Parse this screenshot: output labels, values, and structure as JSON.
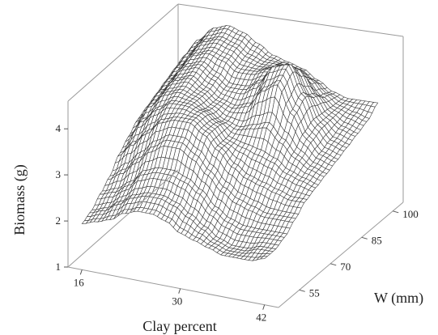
{
  "chart_data": {
    "type": "surface",
    "title": "",
    "xlabel": "Clay percent",
    "ylabel": "W (mm)",
    "zlabel": "Biomass (g)",
    "x_ticks": [
      "16",
      "30",
      "42"
    ],
    "x_tick_values": [
      16,
      30,
      42
    ],
    "y_ticks": [
      "55",
      "70",
      "85",
      "100"
    ],
    "y_tick_values": [
      55,
      70,
      85,
      100
    ],
    "z_ticks": [
      "1",
      "2",
      "3",
      "4"
    ],
    "z_tick_values": [
      1,
      2,
      3,
      4
    ],
    "xlim": [
      14,
      44
    ],
    "ylim": [
      45,
      105
    ],
    "zlim": [
      1,
      4.6
    ],
    "grid": false,
    "surface_grid_x": [
      16,
      18,
      20,
      22,
      24,
      26,
      28,
      30,
      32,
      34,
      36,
      38,
      40,
      42
    ],
    "surface_grid_y": [
      45,
      50,
      55,
      60,
      65,
      70,
      75,
      80,
      85,
      90,
      95,
      100
    ],
    "surface_z": [
      [
        2.0,
        2.1,
        2.2,
        2.4,
        2.5,
        2.5,
        2.4,
        2.2,
        2.1,
        2.0,
        1.9,
        1.9,
        1.9,
        2.0
      ],
      [
        2.1,
        2.2,
        2.4,
        2.6,
        2.7,
        2.7,
        2.6,
        2.4,
        2.2,
        2.0,
        1.9,
        1.9,
        2.0,
        2.0
      ],
      [
        2.3,
        2.4,
        2.6,
        2.9,
        3.0,
        3.0,
        2.9,
        2.7,
        2.4,
        2.2,
        2.1,
        2.1,
        2.1,
        2.1
      ],
      [
        2.5,
        2.7,
        3.0,
        3.3,
        3.5,
        3.5,
        3.3,
        3.0,
        2.7,
        2.5,
        2.4,
        2.3,
        2.3,
        2.3
      ],
      [
        2.8,
        3.1,
        3.4,
        3.7,
        3.8,
        3.8,
        3.6,
        3.3,
        3.0,
        2.8,
        2.7,
        2.6,
        2.5,
        2.5
      ],
      [
        3.0,
        3.4,
        3.7,
        3.9,
        3.9,
        3.8,
        3.6,
        3.3,
        3.2,
        3.1,
        3.0,
        2.8,
        2.7,
        2.6
      ],
      [
        3.2,
        3.6,
        3.9,
        4.0,
        3.9,
        3.7,
        3.5,
        3.4,
        3.5,
        3.6,
        3.3,
        3.0,
        2.8,
        2.7
      ],
      [
        3.3,
        3.7,
        4.0,
        4.1,
        3.9,
        3.7,
        3.6,
        3.7,
        4.1,
        4.3,
        3.7,
        3.2,
        2.9,
        2.8
      ],
      [
        3.4,
        3.8,
        4.1,
        4.2,
        4.0,
        3.8,
        3.8,
        4.0,
        4.4,
        4.5,
        3.9,
        3.3,
        3.0,
        2.9
      ],
      [
        3.5,
        3.9,
        4.2,
        4.3,
        4.2,
        4.0,
        4.0,
        4.1,
        4.3,
        4.2,
        3.7,
        3.3,
        3.1,
        3.0
      ],
      [
        3.6,
        4.0,
        4.3,
        4.4,
        4.3,
        4.1,
        4.0,
        4.0,
        4.0,
        3.8,
        3.5,
        3.3,
        3.2,
        3.1
      ],
      [
        3.7,
        4.1,
        4.4,
        4.5,
        4.4,
        4.2,
        4.0,
        3.9,
        3.8,
        3.6,
        3.4,
        3.3,
        3.3,
        3.3
      ]
    ]
  }
}
